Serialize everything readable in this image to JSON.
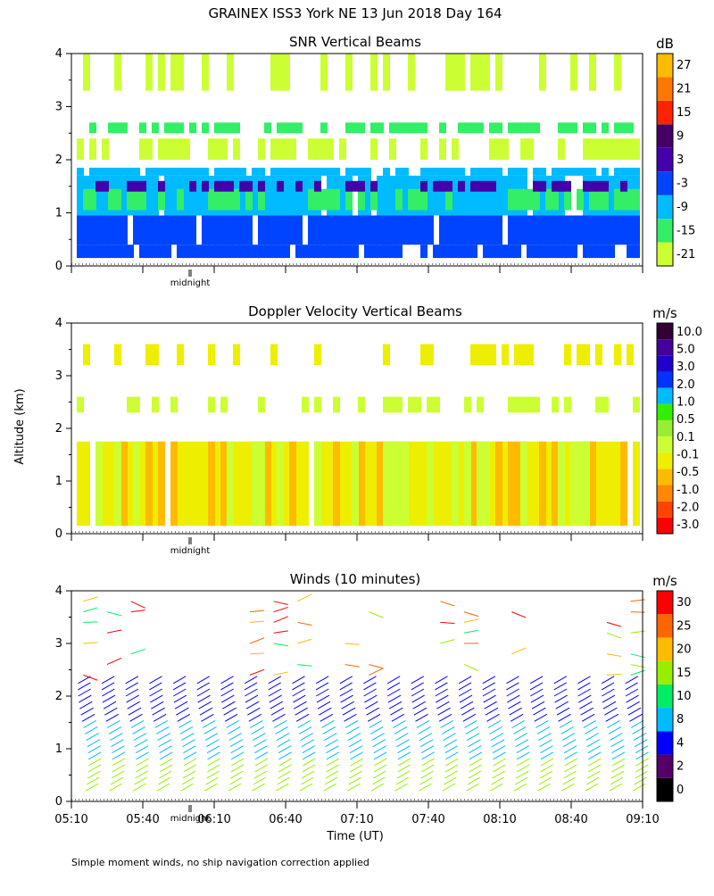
{
  "title": "GRAINEX ISS3 York NE  13 Jun 2018 Day 164",
  "footnote": "Simple moment winds, no ship navigation correction applied",
  "colors": {
    "snr": [
      "#ccff33",
      "#33ee66",
      "#00bbff",
      "#0044ff",
      "#4400aa",
      "#440066",
      "#ff2200",
      "#ff7700",
      "#ffbb00"
    ],
    "doppler": [
      "#ff0000",
      "#ff4400",
      "#ff8800",
      "#ffbb00",
      "#eeee00",
      "#ccff33",
      "#99ee33",
      "#33ee00",
      "#00bbff",
      "#0033ff",
      "#2200cc",
      "#440099",
      "#330033"
    ],
    "winds": [
      "#000000",
      "#550066",
      "#0000ff",
      "#00bbff",
      "#00ee66",
      "#99ee00",
      "#ffbb00",
      "#ff6600",
      "#ff0000"
    ]
  },
  "chart_data": [
    {
      "type": "heatmap",
      "title": "SNR Vertical Beams",
      "ylabel": "Altitude (km)",
      "ylim": [
        0,
        4
      ],
      "yticks": [
        "0",
        "1",
        "2",
        "3",
        "4"
      ],
      "x_range": [
        "05:10",
        "09:10"
      ],
      "midnight_label": "midnight",
      "colorbar": {
        "unit": "dB",
        "levels": [
          "-21",
          "-15",
          "-9",
          "-3",
          "3",
          "9",
          "15",
          "21",
          "27"
        ]
      }
    },
    {
      "type": "heatmap",
      "title": "Doppler Velocity Vertical Beams",
      "ylabel": "Altitude (km)",
      "ylim": [
        0,
        4
      ],
      "yticks": [
        "0",
        "1",
        "2",
        "3",
        "4"
      ],
      "x_range": [
        "05:10",
        "09:10"
      ],
      "midnight_label": "midnight",
      "colorbar": {
        "unit": "m/s",
        "levels": [
          "-3.0",
          "-2.0",
          "-1.0",
          "-0.5",
          "-0.1",
          "0.1",
          "0.5",
          "1.0",
          "2.0",
          "3.0",
          "5.0",
          "10.0"
        ]
      }
    },
    {
      "type": "scatter",
      "title": "Winds (10 minutes)",
      "ylabel": "Altitude (km)",
      "xlabel": "Time (UT)",
      "ylim": [
        0,
        4
      ],
      "yticks": [
        "0",
        "1",
        "2",
        "3",
        "4"
      ],
      "xticks": [
        "05:10",
        "05:40",
        "06:10",
        "06:40",
        "07:10",
        "07:40",
        "08:10",
        "08:40",
        "09:10"
      ],
      "midnight_label": "midnight",
      "colorbar": {
        "unit": "m/s",
        "levels": [
          "0",
          "2",
          "4",
          "8",
          "10",
          "15",
          "20",
          "25",
          "30"
        ]
      }
    }
  ],
  "ylabel_shared": "Altitude (km)"
}
